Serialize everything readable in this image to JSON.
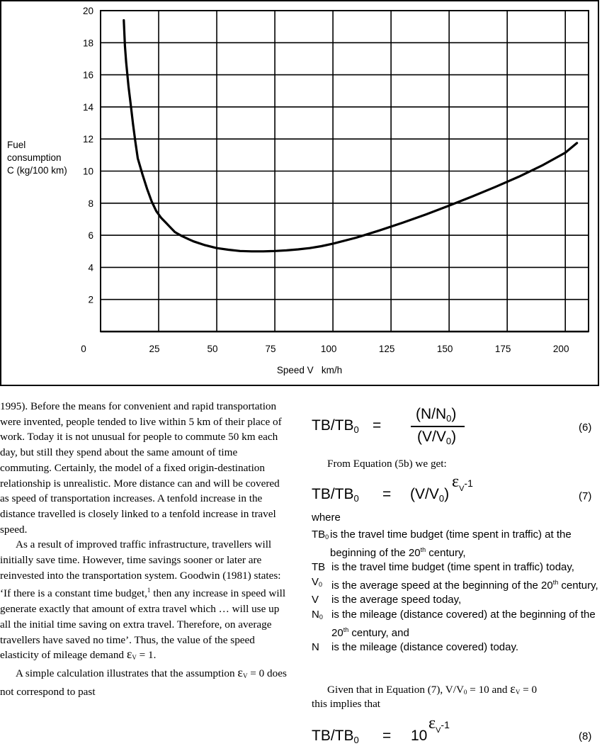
{
  "chart_data": {
    "type": "line",
    "ylabel_lines": [
      "Fuel",
      "consumption",
      "C (kg/100 km)"
    ],
    "xlabel": "Speed V   km/h",
    "xlim": [
      0,
      210
    ],
    "ylim": [
      0,
      20
    ],
    "x_ticks": [
      0,
      25,
      50,
      75,
      100,
      125,
      150,
      175,
      200
    ],
    "y_ticks": [
      2,
      4,
      6,
      8,
      10,
      12,
      14,
      16,
      18,
      20
    ],
    "grid": true,
    "series": [
      {
        "x": [
          10,
          10.5,
          11,
          12,
          13,
          14,
          15,
          16,
          18,
          20,
          22,
          24,
          26,
          28,
          30,
          32,
          35,
          38,
          40,
          45,
          50,
          55,
          60,
          65,
          70,
          75,
          80,
          85,
          90,
          95,
          100,
          110,
          120,
          130,
          140,
          150,
          160,
          170,
          180,
          190,
          200,
          205
        ],
        "y": [
          19.4,
          17.8,
          16.8,
          15.3,
          14.1,
          12.9,
          11.8,
          10.8,
          9.8,
          8.9,
          8.1,
          7.5,
          7.1,
          6.8,
          6.5,
          6.2,
          5.95,
          5.75,
          5.62,
          5.38,
          5.2,
          5.1,
          5.02,
          5.0,
          5.0,
          5.02,
          5.06,
          5.12,
          5.2,
          5.32,
          5.48,
          5.85,
          6.3,
          6.78,
          7.3,
          7.85,
          8.42,
          9.02,
          9.65,
          10.35,
          11.15,
          11.75
        ]
      }
    ]
  },
  "left_col": {
    "p1": "1995). Before the means for convenient and rapid transportation were invented, people tended to live within 5 km of their place of work. Today it is not unusual for people to commute 50 km each day, but still they spend about the same amount of time commuting. Certainly, the model of a fixed origin-destination relationship is unrealistic. More distance can and will be covered as speed of transportation increases. A tenfold increase in the distance travelled is closely linked to a tenfold increase in travel speed.",
    "p2_a": "As a result of improved traffic infrastructure, travellers will initially save time. However, time savings sooner or later are reinvested into the transportation system. Goodwin (1981) states: ‘If there is a constant time budget,",
    "p2_fn": "1",
    "p2_b": " then any increase in speed will generate exactly that amount of extra travel which … will use up all the initial time saving on extra travel. Therefore, on average travellers have saved no time’. Thus, the value of the speed elasticity of mileage demand ",
    "p2_eps": "ε",
    "p2_sub": "V",
    "p2_c": " = 1.",
    "p3_a": "A simple calculation illustrates that the assumption ",
    "p3_eps": "ε",
    "p3_sub": "V",
    "p3_b": " = 0 does not correspond to past"
  },
  "right_col": {
    "eq6": {
      "lhs_main": "TB/TB",
      "lhs_sub": "0",
      "eq": "=",
      "num_a": "(N/N",
      "num_sub": "0",
      "num_b": ")",
      "den_a": "(V/V",
      "den_sub": "0",
      "den_b": ")",
      "number": "(6)"
    },
    "from_text": "From Equation (5b) we get:",
    "eq7": {
      "lhs_main": "TB/TB",
      "lhs_sub": "0",
      "eq": "=",
      "rhs_a": "(V/V",
      "rhs_sub": "0",
      "rhs_b": ")",
      "exp_eps": "ε",
      "exp_sub": "V",
      "exp_tail": "-1",
      "number": "(7)"
    },
    "where": "where",
    "defs": [
      {
        "sym": "TB",
        "sym_sub": "0",
        "text_a": "is the travel time budget (time spent in traffic) at the beginning of the 20",
        "text_sup": "th",
        "text_b": " century,"
      },
      {
        "sym": "TB",
        "sym_sub": "",
        "text_a": "is the travel time budget (time spent in traffic) today,",
        "text_sup": "",
        "text_b": ""
      },
      {
        "sym": "V",
        "sym_sub": "0",
        "text_a": "is the average speed at the beginning of the 20",
        "text_sup": "th",
        "text_b": " century,"
      },
      {
        "sym": "V",
        "sym_sub": "",
        "text_a": "is the average speed today,",
        "text_sup": "",
        "text_b": ""
      },
      {
        "sym": "N",
        "sym_sub": "0",
        "text_a": "is the mileage (distance covered) at the beginning of the 20",
        "text_sup": "th",
        "text_b": " century, and"
      },
      {
        "sym": "N",
        "sym_sub": "",
        "text_a": "is the mileage (distance covered) today.",
        "text_sup": "",
        "text_b": ""
      }
    ],
    "given": {
      "a": "Given that in Equation (7), V/V",
      "sub0": "0",
      "b": " = 10 and ",
      "eps": "ε",
      "eps_sub": "V",
      "c": " = 0",
      "line2": "this implies that"
    },
    "eq8": {
      "lhs_main": "TB/TB",
      "lhs_sub": "0",
      "eq": "=",
      "base": "10",
      "exp_eps": "ε",
      "exp_sub": "V",
      "exp_tail": "-1",
      "number": "(8)"
    }
  }
}
